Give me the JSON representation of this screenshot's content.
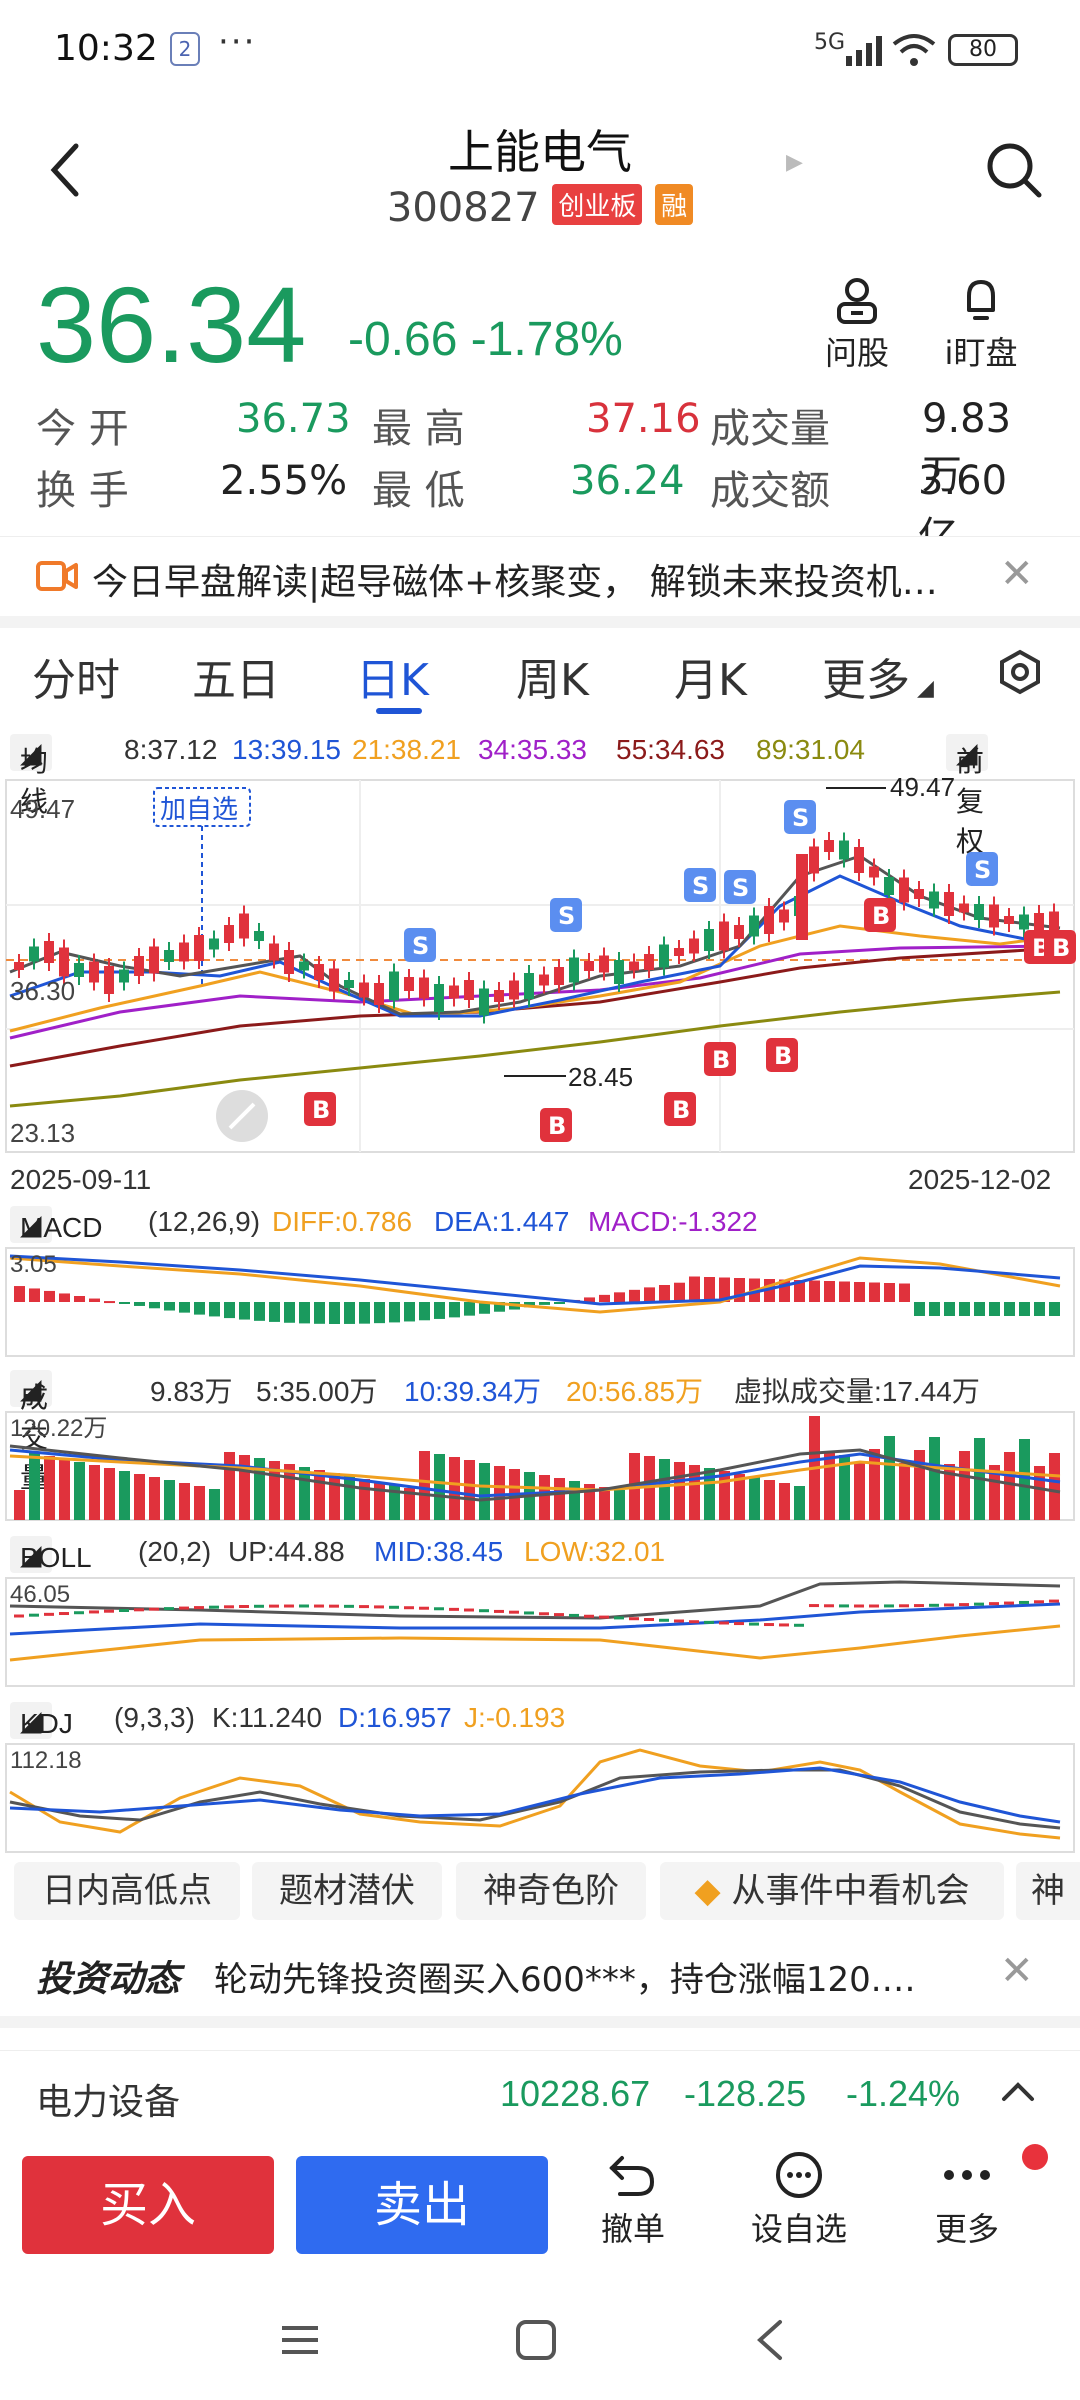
{
  "status_bar": {
    "time": "10:32",
    "notification_badge": "2",
    "network": "5G",
    "battery": "80"
  },
  "header": {
    "title": "上能电气",
    "code": "300827",
    "tags": [
      "创业板",
      "融"
    ]
  },
  "quote": {
    "price": "36.34",
    "change": "-0.66",
    "change_pct": "-1.78%",
    "actions": [
      {
        "label": "问股",
        "icon": "person-icon"
      },
      {
        "label": "i盯盘",
        "icon": "bell-icon"
      }
    ],
    "stats": [
      {
        "label": "今 开",
        "value": "36.73",
        "color": "#1a9a5e"
      },
      {
        "label": "最 高",
        "value": "37.16",
        "color": "#d8323c"
      },
      {
        "label": "成交量",
        "value": "9.83万"
      },
      {
        "label": "换 手",
        "value": "2.55%"
      },
      {
        "label": "最 低",
        "value": "36.24",
        "color": "#1a9a5e"
      },
      {
        "label": "成交额",
        "value": "3.60亿"
      }
    ]
  },
  "banner": {
    "text": "今日早盘解读|超导磁体+核聚变， 解锁未来投资机…"
  },
  "tabs": [
    {
      "label": "分时"
    },
    {
      "label": "五日"
    },
    {
      "label": "日K",
      "active": true
    },
    {
      "label": "周K"
    },
    {
      "label": "月K"
    },
    {
      "label": "更多"
    }
  ],
  "ma_row": {
    "label": "均线",
    "values": [
      {
        "text": "8:37.12",
        "color": "#333333"
      },
      {
        "text": "13:39.15",
        "color": "#1f55d6"
      },
      {
        "text": "21:38.21",
        "color": "#f0a020"
      },
      {
        "text": "34:35.33",
        "color": "#a020c8"
      },
      {
        "text": "55:34.63",
        "color": "#8b1a1a"
      },
      {
        "text": "89:31.04",
        "color": "#8a8a10"
      }
    ],
    "adjust": "前复权"
  },
  "kline": {
    "y_top": "49.47",
    "y_mid": "36.30",
    "y_bottom": "23.13",
    "add_watch": "加自选",
    "high_label": "49.47",
    "low_label": "28.45",
    "date_start": "2025-09-11",
    "date_end": "2025-12-02"
  },
  "macd_row": {
    "label": "MACD",
    "params": "(12,26,9)",
    "diff": "DIFF:0.786",
    "dea": "DEA:1.447",
    "macd": "MACD:-1.322",
    "y_top": "3.05"
  },
  "vol_row": {
    "label": "成交量",
    "v1": "9.83万",
    "v2": "5:35.00万",
    "v3": "10:39.34万",
    "v4": "20:56.85万",
    "virtual": "虚拟成交量:17.44万",
    "y_top": "120.22万"
  },
  "boll_row": {
    "label": "BOLL",
    "params": "(20,2)",
    "up": "UP:44.88",
    "mid": "MID:38.45",
    "low": "LOW:32.01",
    "y_top": "46.05"
  },
  "kdj_row": {
    "label": "KDJ",
    "params": "(9,3,3)",
    "k": "K:11.240",
    "d": "D:16.957",
    "j": "J:-0.193",
    "y_top": "112.18"
  },
  "chips": [
    "日内高低点",
    "题材潜伏",
    "神奇色阶",
    "从事件中看机会",
    "神"
  ],
  "news2": {
    "brand": "投资动态",
    "text": "轮动先锋投资圈买入600***，持仓涨幅120.…"
  },
  "sector": {
    "name": "电力设备",
    "value": "10228.67",
    "change": "-128.25",
    "pct": "-1.24%"
  },
  "bottom": {
    "buy": "买入",
    "sell": "卖出",
    "cancel": "撤单",
    "watch": "设自选",
    "more": "更多"
  }
}
